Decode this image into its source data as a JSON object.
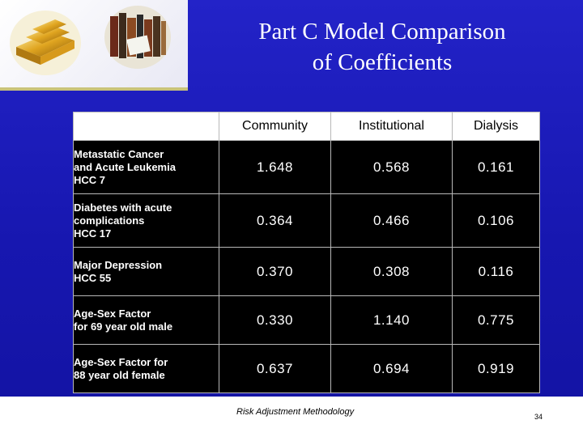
{
  "title": {
    "line1": "Part C Model Comparison",
    "line2": "of Coefficients"
  },
  "table": {
    "columns": [
      "Community",
      "Institutional",
      "Dialysis"
    ],
    "rows": [
      {
        "label": [
          "Metastatic Cancer",
          "and Acute Leukemia",
          "HCC 7"
        ],
        "values": [
          "1.648",
          "0.568",
          "0.161"
        ]
      },
      {
        "label": [
          "Diabetes with acute",
          "complications",
          "HCC 17"
        ],
        "values": [
          "0.364",
          "0.466",
          "0.106"
        ]
      },
      {
        "label": [
          "Major Depression",
          "HCC 55"
        ],
        "values": [
          "0.370",
          "0.308",
          "0.116"
        ]
      },
      {
        "label": [
          "Age-Sex Factor",
          "for 69 year old male"
        ],
        "values": [
          "0.330",
          "1.140",
          "0.775"
        ]
      },
      {
        "label": [
          "Age-Sex Factor for",
          "88 year old female"
        ],
        "values": [
          "0.637",
          "0.694",
          "0.919"
        ]
      }
    ]
  },
  "footer": "Risk Adjustment Methodology",
  "page_number": "34",
  "icons": {
    "photo_left": "gold-bars-photo",
    "photo_right": "books-photo"
  }
}
